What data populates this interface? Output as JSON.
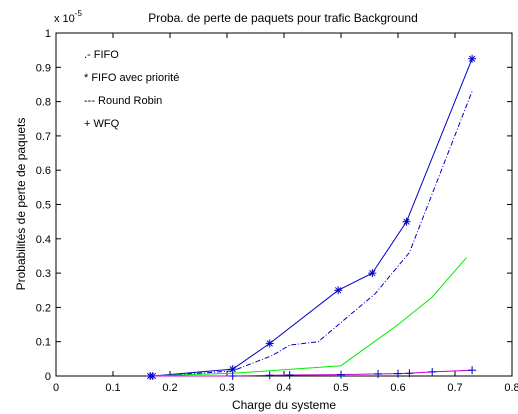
{
  "chart_data": {
    "type": "line",
    "title": "Proba. de perte de paquets pour trafic Background",
    "xlabel": "Charge du systeme",
    "ylabel": "Probabilités de perte de paquets",
    "y_exponent_label": "x 10",
    "y_exponent_power": "-5",
    "xlim": [
      0,
      0.8
    ],
    "ylim": [
      0,
      1
    ],
    "x_ticks": [
      0,
      0.1,
      0.2,
      0.3,
      0.4,
      0.5,
      0.6,
      0.7,
      0.8
    ],
    "x_tick_labels": [
      "0",
      "0.1",
      "0.2",
      "0.3",
      "0.4",
      "0.5",
      "0.6",
      "0.7",
      "0.8"
    ],
    "y_ticks": [
      0,
      0.1,
      0.2,
      0.3,
      0.4,
      0.5,
      0.6,
      0.7,
      0.8,
      0.9,
      1
    ],
    "y_tick_labels": [
      "0",
      "0.1",
      "0.2",
      "0.3",
      "0.4",
      "0.5",
      "0.6",
      "0.7",
      "0.8",
      "0.9",
      "1"
    ],
    "grid": false,
    "legend": [
      {
        "text": ".-  FIFO"
      },
      {
        "text": "*  FIFO avec priorité"
      },
      {
        "text": "---  Round Robin"
      },
      {
        "text": "+    WFQ"
      }
    ],
    "series": [
      {
        "style": "dashdot",
        "color": "#0000c8",
        "x": [
          0.16,
          0.2,
          0.31,
          0.38,
          0.41,
          0.46,
          0.56,
          0.62,
          0.73
        ],
        "y": [
          0.0,
          0.002,
          0.015,
          0.06,
          0.09,
          0.1,
          0.24,
          0.36,
          0.83
        ]
      },
      {
        "style": "solid",
        "marker": "*",
        "color": "#0000c8",
        "x": [
          0.165,
          0.17,
          0.31,
          0.375,
          0.495,
          0.555,
          0.615,
          0.73
        ],
        "y": [
          0.0,
          0.0,
          0.02,
          0.095,
          0.25,
          0.3,
          0.45,
          0.925
        ]
      },
      {
        "style": "solid",
        "color": "#00ee00",
        "x": [
          0.16,
          0.31,
          0.4,
          0.5,
          0.6,
          0.66,
          0.72
        ],
        "y": [
          0.0,
          0.008,
          0.018,
          0.03,
          0.15,
          0.23,
          0.345
        ]
      },
      {
        "style": "solid",
        "marker": "+",
        "color": "#cc00cc",
        "markerColor": "#0000c8",
        "x": [
          0.165,
          0.31,
          0.375,
          0.41,
          0.5,
          0.565,
          0.6,
          0.62,
          0.66,
          0.73
        ],
        "y": [
          0.0,
          0.0,
          0.002,
          0.003,
          0.004,
          0.006,
          0.007,
          0.008,
          0.012,
          0.017
        ]
      }
    ]
  }
}
